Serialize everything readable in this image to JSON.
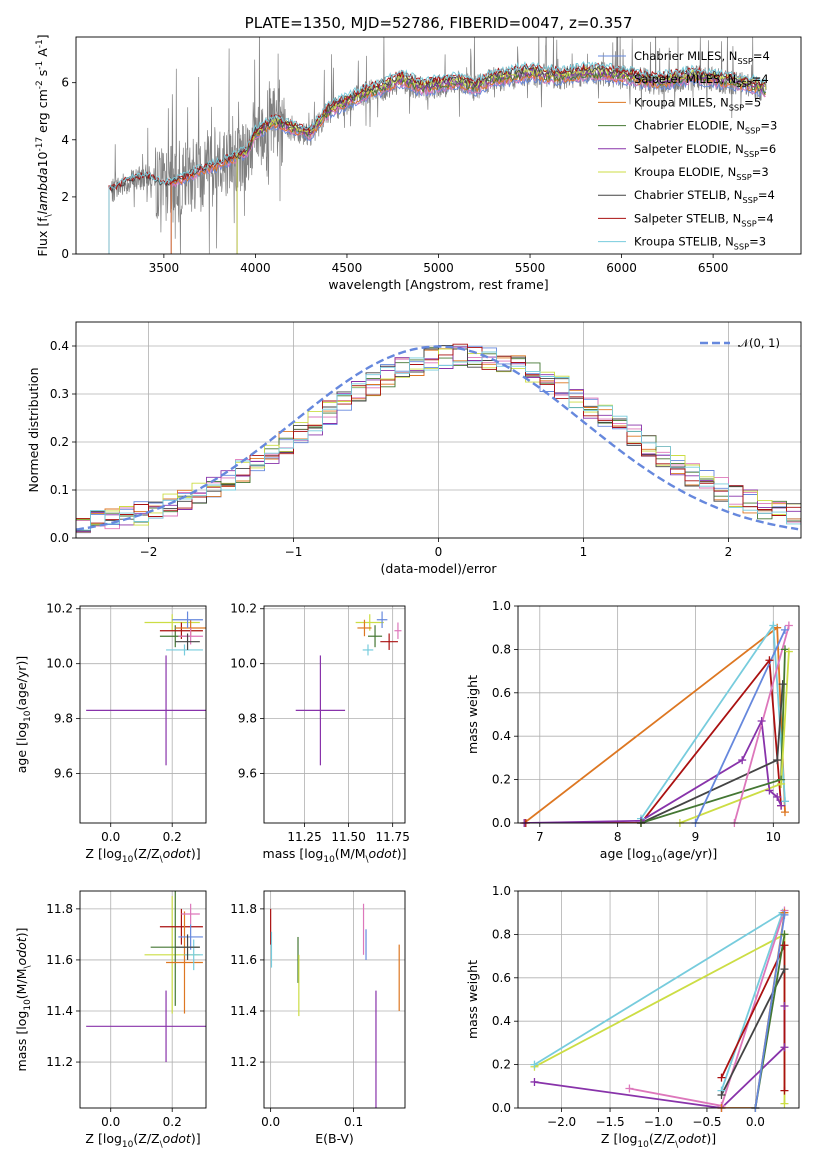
{
  "chart_data": [
    {
      "id": "spectrum",
      "type": "line",
      "title": "PLATE=1350, MJD=52786, FIBERID=0047, z=0.357",
      "xlabel": "wavelength [Angstrom, rest frame]",
      "ylabel": "Flux [f$_\\lambda$10$^{-17}$ erg cm$^{-2}$ s$^{-1}$ A$^{-1}$]",
      "xlim": [
        3020,
        6980
      ],
      "ylim": [
        0,
        7.6
      ],
      "xticks": [
        3500,
        4000,
        4500,
        5000,
        5500,
        6000,
        6500
      ],
      "yticks": [
        0,
        2,
        4,
        6
      ],
      "grid": false,
      "legend_position": "top-right",
      "data_series": {
        "name": "",
        "color": "#808080"
      },
      "continuum_knots": [
        [
          3210,
          2.2
        ],
        [
          3300,
          2.5
        ],
        [
          3400,
          2.7
        ],
        [
          3500,
          2.4
        ],
        [
          3600,
          2.6
        ],
        [
          3700,
          2.9
        ],
        [
          3800,
          3.1
        ],
        [
          3900,
          3.4
        ],
        [
          3950,
          3.5
        ],
        [
          4000,
          4.2
        ],
        [
          4100,
          4.6
        ],
        [
          4200,
          4.4
        ],
        [
          4300,
          4.2
        ],
        [
          4400,
          5.0
        ],
        [
          4500,
          5.3
        ],
        [
          4600,
          5.6
        ],
        [
          4700,
          5.8
        ],
        [
          4800,
          6.1
        ],
        [
          4900,
          5.8
        ],
        [
          5000,
          5.9
        ],
        [
          5100,
          6.0
        ],
        [
          5200,
          5.8
        ],
        [
          5300,
          6.1
        ],
        [
          5400,
          6.2
        ],
        [
          5500,
          6.3
        ],
        [
          5600,
          6.2
        ],
        [
          5700,
          6.2
        ],
        [
          5800,
          6.3
        ],
        [
          5900,
          6.3
        ],
        [
          6000,
          6.2
        ],
        [
          6100,
          6.1
        ],
        [
          6200,
          6.0
        ],
        [
          6300,
          6.1
        ],
        [
          6400,
          6.2
        ],
        [
          6500,
          6.1
        ],
        [
          6600,
          6.0
        ],
        [
          6700,
          5.9
        ],
        [
          6800,
          5.7
        ]
      ],
      "series": [
        {
          "name": "Chabrier MILES, N$_{SSP}$=4",
          "color": "#6688dd",
          "start": 3540
        },
        {
          "name": "Salpeter MILES, N$_{SSP}$=4",
          "color": "#dd77bb",
          "start": 3540
        },
        {
          "name": "Kroupa MILES, N$_{SSP}$=5",
          "color": "#dd7722",
          "start": 3540
        },
        {
          "name": "Chabrier ELODIE, N$_{SSP}$=3",
          "color": "#447733",
          "start": 3900
        },
        {
          "name": "Salpeter ELODIE, N$_{SSP}$=6",
          "color": "#8833aa",
          "start": 3900
        },
        {
          "name": "Kroupa ELODIE, N$_{SSP}$=3",
          "color": "#ccdd44",
          "start": 3900
        },
        {
          "name": "Chabrier STELIB, N$_{SSP}$=4",
          "color": "#444444",
          "start": 3200
        },
        {
          "name": "Salpeter STELIB, N$_{SSP}$=4",
          "color": "#aa1111",
          "start": 3200
        },
        {
          "name": "Kroupa STELIB, N$_{SSP}$=3",
          "color": "#77ccdd",
          "start": 3200
        }
      ]
    },
    {
      "id": "residuals",
      "type": "line",
      "xlabel": "(data-model)/error",
      "ylabel": "Normed distribution",
      "xlim": [
        -2.5,
        2.5
      ],
      "ylim": [
        0,
        0.45
      ],
      "xticks": [
        -2,
        -1,
        0,
        1,
        2
      ],
      "yticks": [
        0.0,
        0.1,
        0.2,
        0.3,
        0.4
      ],
      "grid": true,
      "legend_position": "top-right",
      "reference": {
        "name": "$\\mathcal{N}(0, 1)$",
        "color": "#6688dd",
        "style": "dashed"
      }
    },
    {
      "id": "age-Z",
      "type": "scatter",
      "xlabel": "Z [log$_{10}$(Z/Z$_\\odot$)]",
      "ylabel": "age  [log$_{10}$(age/yr)]",
      "xlim": [
        -0.1,
        0.31
      ],
      "ylim": [
        9.42,
        10.21
      ],
      "xticks": [
        0.0,
        0.2
      ],
      "yticks": [
        9.6,
        9.8,
        10.0,
        10.2
      ],
      "grid": true,
      "points": [
        {
          "color": "#8833aa",
          "x": 0.18,
          "y": 9.83,
          "xerr": 0.26,
          "yerr": 0.2
        },
        {
          "color": "#ccdd44",
          "x": 0.2,
          "y": 10.15,
          "xerr": 0.09,
          "yerr": 0.03
        },
        {
          "color": "#447733",
          "x": 0.21,
          "y": 10.1,
          "xerr": 0.05,
          "yerr": 0.04
        },
        {
          "color": "#aa1111",
          "x": 0.23,
          "y": 10.12,
          "xerr": 0.07,
          "yerr": 0.03
        },
        {
          "color": "#dd7722",
          "x": 0.26,
          "y": 10.13,
          "xerr": 0.05,
          "yerr": 0.03
        },
        {
          "color": "#6688dd",
          "x": 0.25,
          "y": 10.16,
          "xerr": 0.05,
          "yerr": 0.03
        },
        {
          "color": "#dd77bb",
          "x": 0.26,
          "y": 10.1,
          "xerr": 0.04,
          "yerr": 0.03
        },
        {
          "color": "#77ccdd",
          "x": 0.24,
          "y": 10.05,
          "xerr": 0.06,
          "yerr": 0.02
        },
        {
          "color": "#444444",
          "x": 0.25,
          "y": 10.08,
          "xerr": 0.04,
          "yerr": 0.03
        }
      ]
    },
    {
      "id": "age-mass",
      "type": "scatter",
      "xlabel": "mass [log$_{10}$(M/M$_\\odot$)]",
      "xlim": [
        11.02,
        11.82
      ],
      "ylim": [
        9.42,
        10.21
      ],
      "xticks": [
        11.25,
        11.5,
        11.75
      ],
      "yticks": [
        9.6,
        9.8,
        10.0,
        10.2
      ],
      "grid": true,
      "points": [
        {
          "color": "#8833aa",
          "x": 11.34,
          "y": 9.83,
          "xerr": 0.14,
          "yerr": 0.2
        },
        {
          "color": "#ccdd44",
          "x": 11.62,
          "y": 10.15,
          "xerr": 0.08,
          "yerr": 0.03
        },
        {
          "color": "#447733",
          "x": 11.65,
          "y": 10.1,
          "xerr": 0.04,
          "yerr": 0.04
        },
        {
          "color": "#aa1111",
          "x": 11.73,
          "y": 10.08,
          "xerr": 0.05,
          "yerr": 0.03
        },
        {
          "color": "#dd7722",
          "x": 11.59,
          "y": 10.13,
          "xerr": 0.04,
          "yerr": 0.03
        },
        {
          "color": "#6688dd",
          "x": 11.69,
          "y": 10.16,
          "xerr": 0.03,
          "yerr": 0.03
        },
        {
          "color": "#dd77bb",
          "x": 11.78,
          "y": 10.12,
          "xerr": 0.02,
          "yerr": 0.03
        },
        {
          "color": "#77ccdd",
          "x": 11.61,
          "y": 10.05,
          "xerr": 0.03,
          "yerr": 0.02
        }
      ]
    },
    {
      "id": "weight-age",
      "type": "line",
      "xlabel": "age  [log$_{10}$(age/yr)]",
      "ylabel": "mass weight",
      "xlim": [
        6.72,
        10.33
      ],
      "ylim": [
        0,
        1
      ],
      "xticks": [
        7,
        8,
        9,
        10
      ],
      "yticks": [
        0.0,
        0.2,
        0.4,
        0.6,
        0.8,
        1.0
      ],
      "grid": true,
      "series": [
        {
          "color": "#dd7722",
          "points": [
            [
              6.8,
              0.0
            ],
            [
              10.05,
              0.9
            ],
            [
              10.15,
              0.05
            ]
          ]
        },
        {
          "color": "#77ccdd",
          "points": [
            [
              8.3,
              0.02
            ],
            [
              10.0,
              0.91
            ],
            [
              10.15,
              0.1
            ]
          ]
        },
        {
          "color": "#aa1111",
          "points": [
            [
              6.82,
              0.0
            ],
            [
              8.3,
              0.0
            ],
            [
              9.95,
              0.75
            ],
            [
              10.1,
              0.08
            ]
          ]
        },
        {
          "color": "#8833aa",
          "points": [
            [
              6.8,
              0.0
            ],
            [
              8.3,
              0.01
            ],
            [
              9.6,
              0.29
            ],
            [
              9.85,
              0.47
            ],
            [
              9.95,
              0.15
            ],
            [
              10.05,
              0.12
            ],
            [
              10.1,
              0.08
            ]
          ]
        },
        {
          "color": "#444444",
          "points": [
            [
              8.3,
              0.0
            ],
            [
              10.05,
              0.29
            ],
            [
              10.12,
              0.64
            ]
          ]
        },
        {
          "color": "#447733",
          "points": [
            [
              8.3,
              0.0
            ],
            [
              10.1,
              0.2
            ],
            [
              10.15,
              0.8
            ]
          ]
        },
        {
          "color": "#ccdd44",
          "points": [
            [
              8.8,
              0.0
            ],
            [
              10.1,
              0.18
            ],
            [
              10.2,
              0.79
            ]
          ]
        },
        {
          "color": "#6688dd",
          "points": [
            [
              9.0,
              0.0
            ],
            [
              10.15,
              0.89
            ]
          ]
        },
        {
          "color": "#dd77bb",
          "points": [
            [
              9.5,
              0.0
            ],
            [
              10.2,
              0.91
            ]
          ]
        }
      ]
    },
    {
      "id": "mass-Z",
      "type": "scatter",
      "xlabel": "Z [log$_{10}$(Z/Z$_\\odot$)]",
      "ylabel": "mass [log$_{10}$(M/M$_\\odot$)]",
      "xlim": [
        -0.1,
        0.31
      ],
      "ylim": [
        11.02,
        11.87
      ],
      "xticks": [
        0.0,
        0.2
      ],
      "yticks": [
        11.2,
        11.4,
        11.6,
        11.8
      ],
      "grid": true,
      "points": [
        {
          "color": "#8833aa",
          "x": 0.18,
          "y": 11.34,
          "xerr": 0.26,
          "yerr": 0.14
        },
        {
          "color": "#ccdd44",
          "x": 0.2,
          "y": 11.62,
          "xerr": 0.09,
          "yerr": 0.23
        },
        {
          "color": "#447733",
          "x": 0.21,
          "y": 11.65,
          "xerr": 0.08,
          "yerr": 0.23
        },
        {
          "color": "#aa1111",
          "x": 0.23,
          "y": 11.73,
          "xerr": 0.07,
          "yerr": 0.07
        },
        {
          "color": "#dd7722",
          "x": 0.24,
          "y": 11.59,
          "xerr": 0.06,
          "yerr": 0.2
        },
        {
          "color": "#6688dd",
          "x": 0.26,
          "y": 11.69,
          "xerr": 0.04,
          "yerr": 0.05
        },
        {
          "color": "#dd77bb",
          "x": 0.26,
          "y": 11.78,
          "xerr": 0.03,
          "yerr": 0.04
        },
        {
          "color": "#77ccdd",
          "x": 0.27,
          "y": 11.62,
          "xerr": 0.03,
          "yerr": 0.06
        },
        {
          "color": "#444444",
          "x": 0.25,
          "y": 11.65,
          "xerr": 0.04,
          "yerr": 0.05
        }
      ]
    },
    {
      "id": "mass-ebv",
      "type": "scatter",
      "xlabel": "E(B-V)",
      "xlim": [
        -0.008,
        0.162
      ],
      "ylim": [
        11.02,
        11.87
      ],
      "xticks": [
        0.0,
        0.1
      ],
      "yticks": [
        11.2,
        11.4,
        11.6,
        11.8
      ],
      "grid": true,
      "points": [
        {
          "color": "#aa1111",
          "x": 0.0,
          "y": 11.73,
          "yerr": 0.07
        },
        {
          "color": "#77ccdd",
          "x": 0.001,
          "y": 11.64,
          "yerr": 0.07
        },
        {
          "color": "#447733",
          "x": 0.033,
          "y": 11.6,
          "yerr": 0.09
        },
        {
          "color": "#ccdd44",
          "x": 0.034,
          "y": 11.5,
          "yerr": 0.12
        },
        {
          "color": "#dd77bb",
          "x": 0.112,
          "y": 11.72,
          "yerr": 0.1
        },
        {
          "color": "#6688dd",
          "x": 0.115,
          "y": 11.66,
          "yerr": 0.06
        },
        {
          "color": "#8833aa",
          "x": 0.127,
          "y": 11.22,
          "yerr": 0.26
        },
        {
          "color": "#dd7722",
          "x": 0.155,
          "y": 11.53,
          "yerr": 0.13
        }
      ]
    },
    {
      "id": "weight-Z",
      "type": "line",
      "xlabel": "Z [log$_{10}$(Z/Z$_\\odot$)]",
      "ylabel": "mass weight",
      "xlim": [
        -2.45,
        0.45
      ],
      "ylim": [
        0,
        1
      ],
      "xticks": [
        -2.0,
        -1.5,
        -1.0,
        -0.5,
        0.0
      ],
      "yticks": [
        0.0,
        0.2,
        0.4,
        0.6,
        0.8,
        1.0
      ],
      "grid": true,
      "series": [
        {
          "color": "#ccdd44",
          "points": [
            [
              -2.28,
              0.19
            ],
            [
              0.3,
              0.8
            ],
            [
              0.3,
              0.02
            ]
          ]
        },
        {
          "color": "#77ccdd",
          "points": [
            [
              -2.28,
              0.2
            ],
            [
              0.28,
              0.9
            ],
            [
              -0.35,
              0.08
            ]
          ]
        },
        {
          "color": "#8833aa",
          "points": [
            [
              -2.28,
              0.12
            ],
            [
              -0.35,
              0.0
            ],
            [
              0.3,
              0.28
            ],
            [
              0.3,
              0.47
            ]
          ]
        },
        {
          "color": "#dd77bb",
          "points": [
            [
              -1.3,
              0.09
            ],
            [
              -0.35,
              0.01
            ],
            [
              0.3,
              0.91
            ]
          ]
        },
        {
          "color": "#dd7722",
          "points": [
            [
              -0.35,
              0.0
            ],
            [
              0.0,
              0.0
            ],
            [
              0.3,
              0.9
            ]
          ]
        },
        {
          "color": "#aa1111",
          "points": [
            [
              -0.35,
              0.14
            ],
            [
              0.3,
              0.75
            ],
            [
              0.3,
              0.08
            ]
          ]
        },
        {
          "color": "#444444",
          "points": [
            [
              -0.35,
              0.06
            ],
            [
              0.3,
              0.64
            ]
          ]
        },
        {
          "color": "#447733",
          "points": [
            [
              0.0,
              0.0
            ],
            [
              0.3,
              0.8
            ]
          ]
        },
        {
          "color": "#6688dd",
          "points": [
            [
              0.0,
              0.0
            ],
            [
              0.3,
              0.89
            ]
          ]
        }
      ]
    }
  ]
}
